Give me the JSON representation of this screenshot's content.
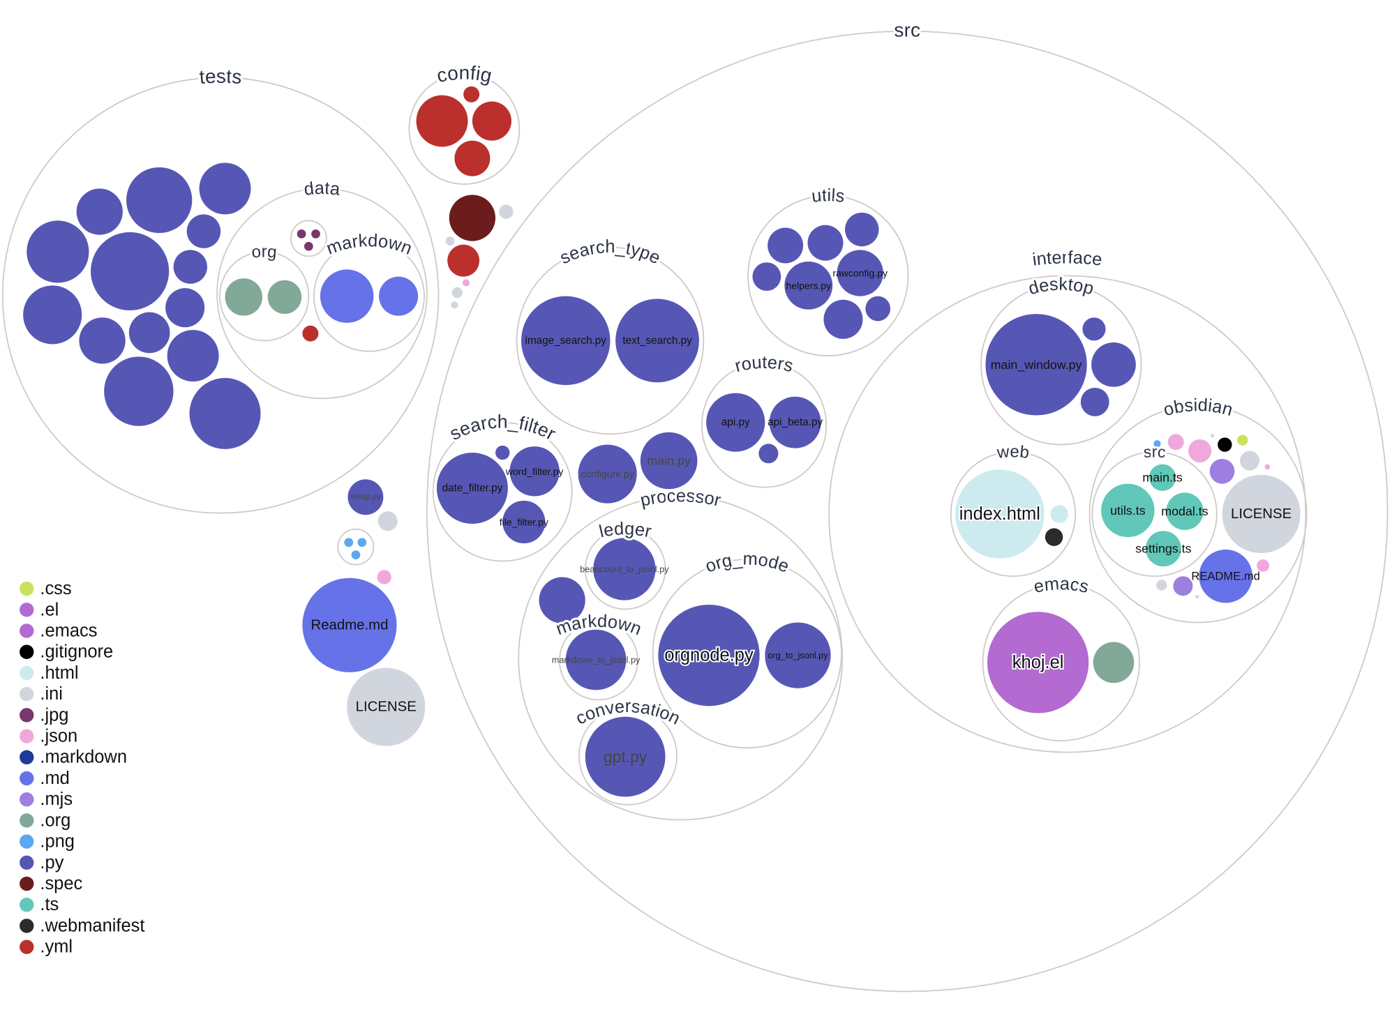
{
  "legend": [
    {
      "ext": ".css",
      "color": "#c8e35b"
    },
    {
      "ext": ".el",
      "color": "#b36ad1"
    },
    {
      "ext": ".emacs",
      "color": "#b36ad1"
    },
    {
      "ext": ".gitignore",
      "color": "#000000"
    },
    {
      "ext": ".html",
      "color": "#cdebee"
    },
    {
      "ext": ".ini",
      "color": "#d1d6de"
    },
    {
      "ext": ".jpg",
      "color": "#7a376c"
    },
    {
      "ext": ".json",
      "color": "#f0a8dc"
    },
    {
      "ext": ".markdown",
      "color": "#1a3c96"
    },
    {
      "ext": ".md",
      "color": "#6672e8"
    },
    {
      "ext": ".mjs",
      "color": "#9c7fe0"
    },
    {
      "ext": ".org",
      "color": "#82a898"
    },
    {
      "ext": ".png",
      "color": "#5ca7ef"
    },
    {
      "ext": ".py",
      "color": "#5657b4"
    },
    {
      "ext": ".spec",
      "color": "#6b1c1c"
    },
    {
      "ext": ".ts",
      "color": "#61c7b9"
    },
    {
      "ext": ".webmanifest",
      "color": "#2b2b2b"
    },
    {
      "ext": ".yml",
      "color": "#bb2f2c"
    }
  ],
  "folders": [
    {
      "name": "tests"
    },
    {
      "name": "data"
    },
    {
      "name": "org"
    },
    {
      "name": "markdown"
    },
    {
      "name": ""
    },
    {
      "name": "config"
    },
    {
      "name": "src"
    },
    {
      "name": "search_type"
    },
    {
      "name": "utils"
    },
    {
      "name": "routers"
    },
    {
      "name": "search_filter"
    },
    {
      "name": "interface"
    },
    {
      "name": "desktop"
    },
    {
      "name": "web"
    },
    {
      "name": "obsidian"
    },
    {
      "name": "src"
    },
    {
      "name": "emacs"
    },
    {
      "name": "processor"
    },
    {
      "name": "ledger"
    },
    {
      "name": "markdown"
    },
    {
      "name": "org_mode"
    },
    {
      "name": "conversation"
    },
    {
      "name": ""
    }
  ],
  "files": [
    {
      "ext": ".py",
      "name": ""
    },
    {
      "ext": ".py",
      "name": ""
    },
    {
      "ext": ".py",
      "name": ""
    },
    {
      "ext": ".py",
      "name": ""
    },
    {
      "ext": ".py",
      "name": ""
    },
    {
      "ext": ".py",
      "name": ""
    },
    {
      "ext": ".py",
      "name": ""
    },
    {
      "ext": ".py",
      "name": ""
    },
    {
      "ext": ".py",
      "name": ""
    },
    {
      "ext": ".py",
      "name": ""
    },
    {
      "ext": ".py",
      "name": ""
    },
    {
      "ext": ".py",
      "name": ""
    },
    {
      "ext": ".py",
      "name": ""
    },
    {
      "ext": ".py",
      "name": ""
    },
    {
      "ext": ".org",
      "name": ""
    },
    {
      "ext": ".org",
      "name": ""
    },
    {
      "ext": ".md",
      "name": ""
    },
    {
      "ext": ".md",
      "name": ""
    },
    {
      "ext": ".jpg",
      "name": ""
    },
    {
      "ext": ".jpg",
      "name": ""
    },
    {
      "ext": ".jpg",
      "name": ""
    },
    {
      "ext": ".yml",
      "name": ""
    },
    {
      "ext": ".yml",
      "name": ""
    },
    {
      "ext": ".yml",
      "name": ""
    },
    {
      "ext": ".yml",
      "name": ""
    },
    {
      "ext": ".yml",
      "name": ""
    },
    {
      "ext": ".spec",
      "name": ""
    },
    {
      "ext": ".ini",
      "name": ""
    },
    {
      "ext": ".yml",
      "name": ""
    },
    {
      "ext": ".ini",
      "name": ""
    },
    {
      "ext": ".ini",
      "name": ""
    },
    {
      "ext": ".json",
      "name": ""
    },
    {
      "ext": ".ini",
      "name": ""
    },
    {
      "ext": ".py",
      "name": "setup.py"
    },
    {
      "ext": ".ini",
      "name": ""
    },
    {
      "ext": ".png",
      "name": ""
    },
    {
      "ext": ".png",
      "name": ""
    },
    {
      "ext": ".png",
      "name": ""
    },
    {
      "ext": ".json",
      "name": ""
    },
    {
      "ext": ".md",
      "name": "Readme.md"
    },
    {
      "ext": ".ini",
      "name": "LICENSE"
    },
    {
      "ext": ".py",
      "name": "image_search.py"
    },
    {
      "ext": ".py",
      "name": "text_search.py"
    },
    {
      "ext": ".py",
      "name": ""
    },
    {
      "ext": ".py",
      "name": ""
    },
    {
      "ext": ".py",
      "name": ""
    },
    {
      "ext": ".py",
      "name": ""
    },
    {
      "ext": ".py",
      "name": "helpers.py"
    },
    {
      "ext": ".py",
      "name": "rawconfig.py"
    },
    {
      "ext": ".py",
      "name": ""
    },
    {
      "ext": ".py",
      "name": ""
    },
    {
      "ext": ".py",
      "name": "api.py"
    },
    {
      "ext": ".py",
      "name": "api_beta.py"
    },
    {
      "ext": ".py",
      "name": ""
    },
    {
      "ext": ".py",
      "name": "date_filter.py"
    },
    {
      "ext": ".py",
      "name": "word_filter.py"
    },
    {
      "ext": ".py",
      "name": "file_filter.py"
    },
    {
      "ext": ".py",
      "name": ""
    },
    {
      "ext": ".py",
      "name": "configure.py"
    },
    {
      "ext": ".py",
      "name": "main.py"
    },
    {
      "ext": ".py",
      "name": ""
    },
    {
      "ext": ".py",
      "name": "beancount_to_jsonl.py"
    },
    {
      "ext": ".py",
      "name": "markdown_to_jsonl.py"
    },
    {
      "ext": ".py",
      "name": "orgnode.py"
    },
    {
      "ext": ".py",
      "name": "org_to_jsonl.py"
    },
    {
      "ext": ".py",
      "name": "gpt.py"
    },
    {
      "ext": ".py",
      "name": "main_window.py"
    },
    {
      "ext": ".py",
      "name": ""
    },
    {
      "ext": ".py",
      "name": ""
    },
    {
      "ext": ".py",
      "name": ""
    },
    {
      "ext": ".html",
      "name": "index.html"
    },
    {
      "ext": ".html",
      "name": ""
    },
    {
      "ext": ".webmanifest",
      "name": ""
    },
    {
      "ext": ".el",
      "name": "khoj.el"
    },
    {
      "ext": ".org",
      "name": ""
    },
    {
      "ext": ".ts",
      "name": "main.ts"
    },
    {
      "ext": ".ts",
      "name": "utils.ts"
    },
    {
      "ext": ".ts",
      "name": "modal.ts"
    },
    {
      "ext": ".ts",
      "name": "settings.ts"
    },
    {
      "ext": ".png",
      "name": ""
    },
    {
      "ext": ".json",
      "name": ""
    },
    {
      "ext": ".json",
      "name": ""
    },
    {
      "ext": ".ini",
      "name": ""
    },
    {
      "ext": ".gitignore",
      "name": ""
    },
    {
      "ext": ".css",
      "name": ""
    },
    {
      "ext": ".mjs",
      "name": ""
    },
    {
      "ext": ".ini",
      "name": ""
    },
    {
      "ext": ".json",
      "name": ""
    },
    {
      "ext": ".ini",
      "name": "LICENSE"
    },
    {
      "ext": ".md",
      "name": "README.md"
    },
    {
      "ext": ".json",
      "name": ""
    },
    {
      "ext": ".ini",
      "name": ""
    },
    {
      "ext": ".mjs",
      "name": ""
    },
    {
      "ext": ".ini",
      "name": ""
    }
  ]
}
